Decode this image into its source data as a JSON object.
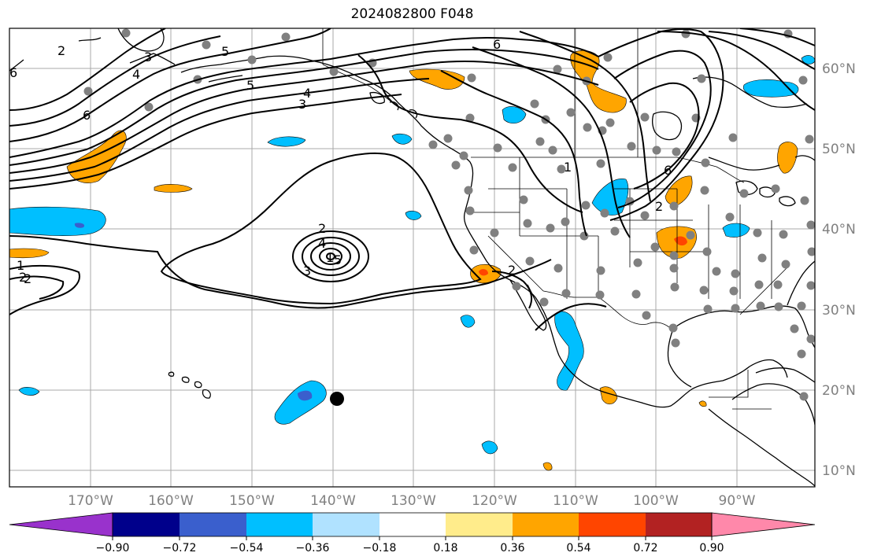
{
  "title": "2024082800 F048",
  "map": {
    "lat_labels": [
      "60°N",
      "50°N",
      "40°N",
      "30°N",
      "20°N",
      "10°N"
    ],
    "lon_labels": [
      "170°W",
      "160°W",
      "150°W",
      "140°W",
      "130°W",
      "120°W",
      "110°W",
      "100°W",
      "90°W"
    ],
    "contour_labels": [
      "2",
      "3",
      "4",
      "5",
      "6",
      "6",
      "5",
      "4",
      "3",
      "6",
      "1",
      "2",
      "1",
      "6",
      "2",
      "2",
      "4",
      "3",
      "5",
      "1",
      "2",
      "2"
    ],
    "colors": {
      "land_outline": "#000000",
      "grid": "#a0a0a0",
      "station_dot": "#808080",
      "contour": "#000000"
    }
  },
  "colorbar": {
    "colors": [
      "#9932cc",
      "#00008b",
      "#3a5fcd",
      "#00bfff",
      "#b0e2ff",
      "#ffffff",
      "#ffec8b",
      "#ffa500",
      "#ff4500",
      "#b22222",
      "#ff88aa"
    ],
    "tick_labels": [
      "−0.90",
      "−0.72",
      "−0.54",
      "−0.36",
      "−0.18",
      "0.18",
      "0.36",
      "0.54",
      "0.72",
      "0.90"
    ]
  }
}
